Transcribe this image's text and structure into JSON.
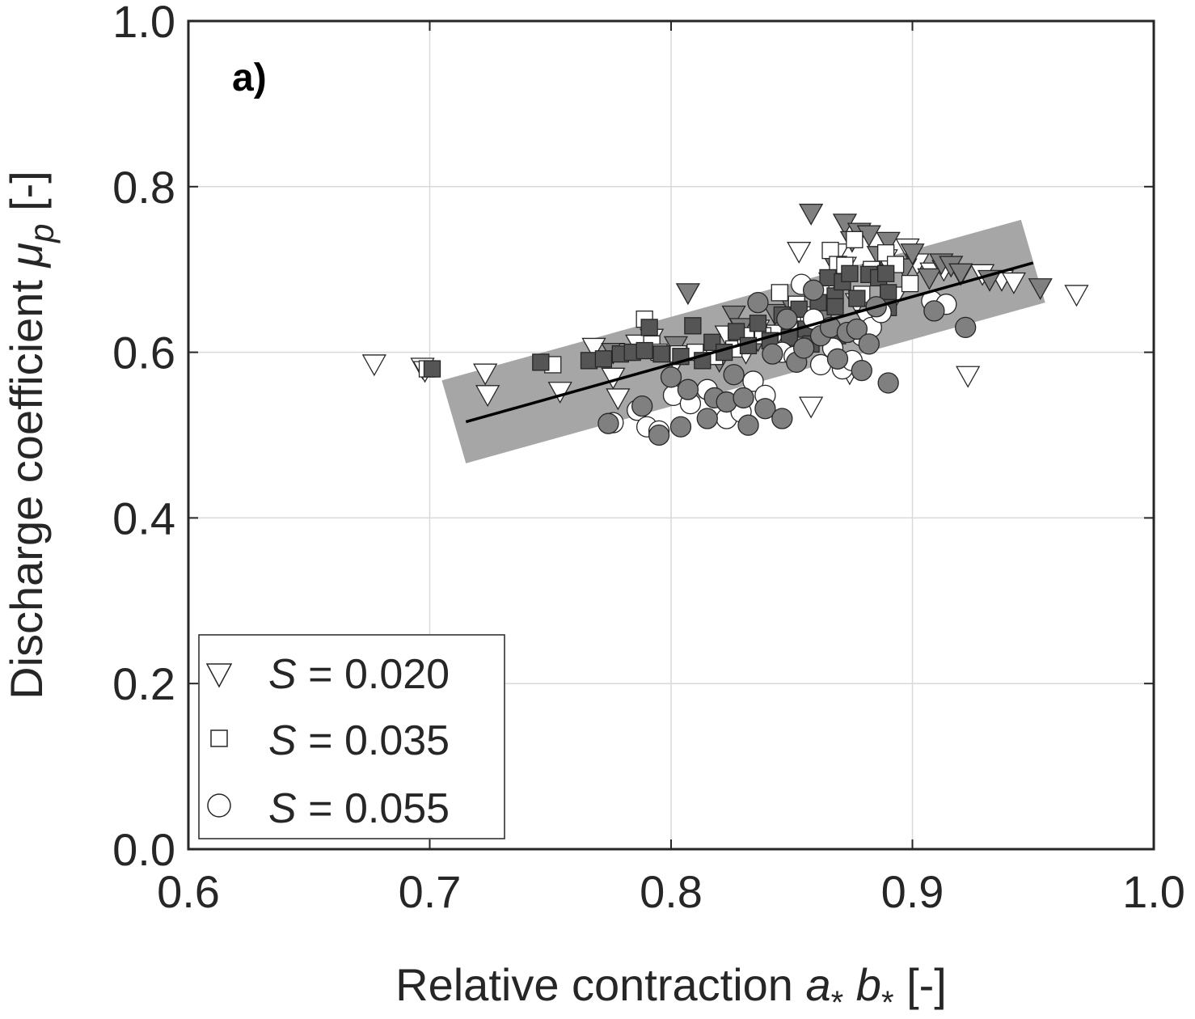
{
  "chart_data": {
    "type": "scatter",
    "panel_label": "a)",
    "xlabel": {
      "text": "Relative contraction ",
      "a": "a",
      "sub1": "*",
      "b": " b",
      "sub2": "*",
      "unit": " [-]"
    },
    "ylabel": {
      "text": "Discharge coefficient ",
      "mu": "μ",
      "sub": "p",
      "unit": " [-]"
    },
    "xlim": [
      0.6,
      1.0
    ],
    "ylim": [
      0.0,
      1.0
    ],
    "xticks": [
      "0.6",
      "0.7",
      "0.8",
      "0.9",
      "1.0"
    ],
    "yticks": [
      "0.0",
      "0.2",
      "0.4",
      "0.6",
      "0.8",
      "1.0"
    ],
    "grid": true,
    "legend_position": "bottom-left",
    "legend": [
      {
        "var": "S",
        "text": " = 0.020",
        "marker": "triangle-down"
      },
      {
        "var": "S",
        "text": " = 0.035",
        "marker": "square"
      },
      {
        "var": "S",
        "text": " = 0.055",
        "marker": "circle"
      }
    ],
    "colors": {
      "open_fill": "#ffffff",
      "filled_mid": "#808080",
      "filled_dark": "#555555",
      "band": "#a6a6a6",
      "fit_line": "#000000",
      "grid": "#d9d9d9"
    },
    "fit_line": {
      "x": [
        0.715,
        0.95
      ],
      "y": [
        0.516,
        0.708
      ]
    },
    "band": {
      "polygon": [
        [
          0.705,
          0.566
        ],
        [
          0.945,
          0.76
        ],
        [
          0.955,
          0.66
        ],
        [
          0.715,
          0.466
        ]
      ]
    },
    "series": [
      {
        "marker": "triangle-down",
        "fill": "open",
        "points": [
          [
            0.677,
            0.586
          ],
          [
            0.697,
            0.582
          ],
          [
            0.698,
            0.578
          ],
          [
            0.723,
            0.575
          ],
          [
            0.724,
            0.549
          ],
          [
            0.754,
            0.553
          ],
          [
            0.768,
            0.606
          ],
          [
            0.776,
            0.57
          ],
          [
            0.778,
            0.545
          ],
          [
            0.786,
            0.61
          ],
          [
            0.792,
            0.617
          ],
          [
            0.802,
            0.589
          ],
          [
            0.815,
            0.598
          ],
          [
            0.823,
            0.621
          ],
          [
            0.831,
            0.6
          ],
          [
            0.836,
            0.628
          ],
          [
            0.844,
            0.622
          ],
          [
            0.852,
            0.635
          ],
          [
            0.853,
            0.722
          ],
          [
            0.858,
            0.535
          ],
          [
            0.861,
            0.64
          ],
          [
            0.864,
            0.652
          ],
          [
            0.866,
            0.685
          ],
          [
            0.869,
            0.72
          ],
          [
            0.872,
            0.704
          ],
          [
            0.874,
            0.575
          ],
          [
            0.877,
            0.66
          ],
          [
            0.881,
            0.64
          ],
          [
            0.884,
            0.695
          ],
          [
            0.889,
            0.713
          ],
          [
            0.893,
            0.668
          ],
          [
            0.898,
            0.726
          ],
          [
            0.902,
            0.708
          ],
          [
            0.908,
            0.697
          ],
          [
            0.913,
            0.7
          ],
          [
            0.92,
            0.695
          ],
          [
            0.923,
            0.572
          ],
          [
            0.929,
            0.695
          ],
          [
            0.937,
            0.688
          ],
          [
            0.942,
            0.685
          ],
          [
            0.968,
            0.67
          ]
        ]
      },
      {
        "marker": "triangle-down",
        "fill": "filled",
        "points": [
          [
            0.776,
            0.6
          ],
          [
            0.802,
            0.608
          ],
          [
            0.807,
            0.672
          ],
          [
            0.82,
            0.59
          ],
          [
            0.826,
            0.645
          ],
          [
            0.829,
            0.63
          ],
          [
            0.836,
            0.615
          ],
          [
            0.843,
            0.647
          ],
          [
            0.85,
            0.656
          ],
          [
            0.858,
            0.768
          ],
          [
            0.863,
            0.64
          ],
          [
            0.868,
            0.705
          ],
          [
            0.872,
            0.756
          ],
          [
            0.875,
            0.735
          ],
          [
            0.878,
            0.745
          ],
          [
            0.882,
            0.742
          ],
          [
            0.886,
            0.717
          ],
          [
            0.89,
            0.734
          ],
          [
            0.897,
            0.702
          ],
          [
            0.9,
            0.72
          ],
          [
            0.907,
            0.69
          ],
          [
            0.912,
            0.708
          ],
          [
            0.916,
            0.705
          ],
          [
            0.92,
            0.696
          ],
          [
            0.932,
            0.688
          ],
          [
            0.953,
            0.678
          ]
        ]
      },
      {
        "marker": "square",
        "fill": "open",
        "points": [
          [
            0.699,
            0.58
          ],
          [
            0.751,
            0.585
          ],
          [
            0.782,
            0.6
          ],
          [
            0.789,
            0.64
          ],
          [
            0.792,
            0.61
          ],
          [
            0.795,
            0.6
          ],
          [
            0.803,
            0.598
          ],
          [
            0.81,
            0.6
          ],
          [
            0.818,
            0.595
          ],
          [
            0.826,
            0.604
          ],
          [
            0.831,
            0.62
          ],
          [
            0.838,
            0.62
          ],
          [
            0.845,
            0.672
          ],
          [
            0.849,
            0.628
          ],
          [
            0.852,
            0.658
          ],
          [
            0.857,
            0.645
          ],
          [
            0.862,
            0.673
          ],
          [
            0.866,
            0.723
          ],
          [
            0.869,
            0.706
          ],
          [
            0.872,
            0.705
          ],
          [
            0.876,
            0.736
          ],
          [
            0.879,
            0.67
          ],
          [
            0.883,
            0.7
          ],
          [
            0.889,
            0.72
          ],
          [
            0.893,
            0.706
          ],
          [
            0.899,
            0.683
          ]
        ]
      },
      {
        "marker": "square",
        "fill": "filled",
        "points": [
          [
            0.701,
            0.58
          ],
          [
            0.746,
            0.588
          ],
          [
            0.766,
            0.59
          ],
          [
            0.772,
            0.592
          ],
          [
            0.779,
            0.598
          ],
          [
            0.784,
            0.6
          ],
          [
            0.789,
            0.602
          ],
          [
            0.791,
            0.63
          ],
          [
            0.796,
            0.598
          ],
          [
            0.804,
            0.595
          ],
          [
            0.809,
            0.632
          ],
          [
            0.813,
            0.59
          ],
          [
            0.817,
            0.612
          ],
          [
            0.822,
            0.6
          ],
          [
            0.827,
            0.625
          ],
          [
            0.832,
            0.608
          ],
          [
            0.836,
            0.635
          ],
          [
            0.841,
            0.614
          ],
          [
            0.846,
            0.645
          ],
          [
            0.849,
            0.618
          ],
          [
            0.853,
            0.652
          ],
          [
            0.856,
            0.628
          ],
          [
            0.861,
            0.66
          ],
          [
            0.865,
            0.69
          ],
          [
            0.868,
            0.668
          ],
          [
            0.871,
            0.685
          ],
          [
            0.874,
            0.695
          ],
          [
            0.877,
            0.665
          ],
          [
            0.882,
            0.694
          ],
          [
            0.886,
            0.69
          ],
          [
            0.889,
            0.695
          ],
          [
            0.89,
            0.672
          ],
          [
            0.89,
            0.654
          ],
          [
            0.868,
            0.655
          ],
          [
            0.858,
            0.61
          ],
          [
            0.869,
            0.62
          ]
        ]
      },
      {
        "marker": "circle",
        "fill": "open",
        "points": [
          [
            0.776,
            0.515
          ],
          [
            0.786,
            0.53
          ],
          [
            0.79,
            0.51
          ],
          [
            0.795,
            0.505
          ],
          [
            0.801,
            0.548
          ],
          [
            0.808,
            0.538
          ],
          [
            0.815,
            0.555
          ],
          [
            0.823,
            0.52
          ],
          [
            0.829,
            0.528
          ],
          [
            0.834,
            0.565
          ],
          [
            0.839,
            0.548
          ],
          [
            0.846,
            0.6
          ],
          [
            0.851,
            0.595
          ],
          [
            0.854,
            0.682
          ],
          [
            0.859,
            0.64
          ],
          [
            0.862,
            0.585
          ],
          [
            0.867,
            0.605
          ],
          [
            0.871,
            0.58
          ],
          [
            0.875,
            0.59
          ],
          [
            0.879,
            0.62
          ],
          [
            0.883,
            0.63
          ],
          [
            0.887,
            0.648
          ],
          [
            0.908,
            0.662
          ],
          [
            0.914,
            0.658
          ]
        ]
      },
      {
        "marker": "circle",
        "fill": "filled",
        "points": [
          [
            0.774,
            0.514
          ],
          [
            0.788,
            0.535
          ],
          [
            0.795,
            0.5
          ],
          [
            0.8,
            0.57
          ],
          [
            0.804,
            0.51
          ],
          [
            0.807,
            0.555
          ],
          [
            0.815,
            0.52
          ],
          [
            0.818,
            0.545
          ],
          [
            0.823,
            0.54
          ],
          [
            0.826,
            0.573
          ],
          [
            0.83,
            0.545
          ],
          [
            0.832,
            0.512
          ],
          [
            0.836,
            0.66
          ],
          [
            0.839,
            0.532
          ],
          [
            0.842,
            0.598
          ],
          [
            0.846,
            0.52
          ],
          [
            0.848,
            0.64
          ],
          [
            0.852,
            0.588
          ],
          [
            0.855,
            0.605
          ],
          [
            0.859,
            0.675
          ],
          [
            0.862,
            0.62
          ],
          [
            0.866,
            0.63
          ],
          [
            0.869,
            0.592
          ],
          [
            0.873,
            0.624
          ],
          [
            0.877,
            0.628
          ],
          [
            0.879,
            0.578
          ],
          [
            0.882,
            0.61
          ],
          [
            0.885,
            0.655
          ],
          [
            0.89,
            0.563
          ],
          [
            0.909,
            0.65
          ],
          [
            0.922,
            0.63
          ]
        ]
      }
    ]
  }
}
